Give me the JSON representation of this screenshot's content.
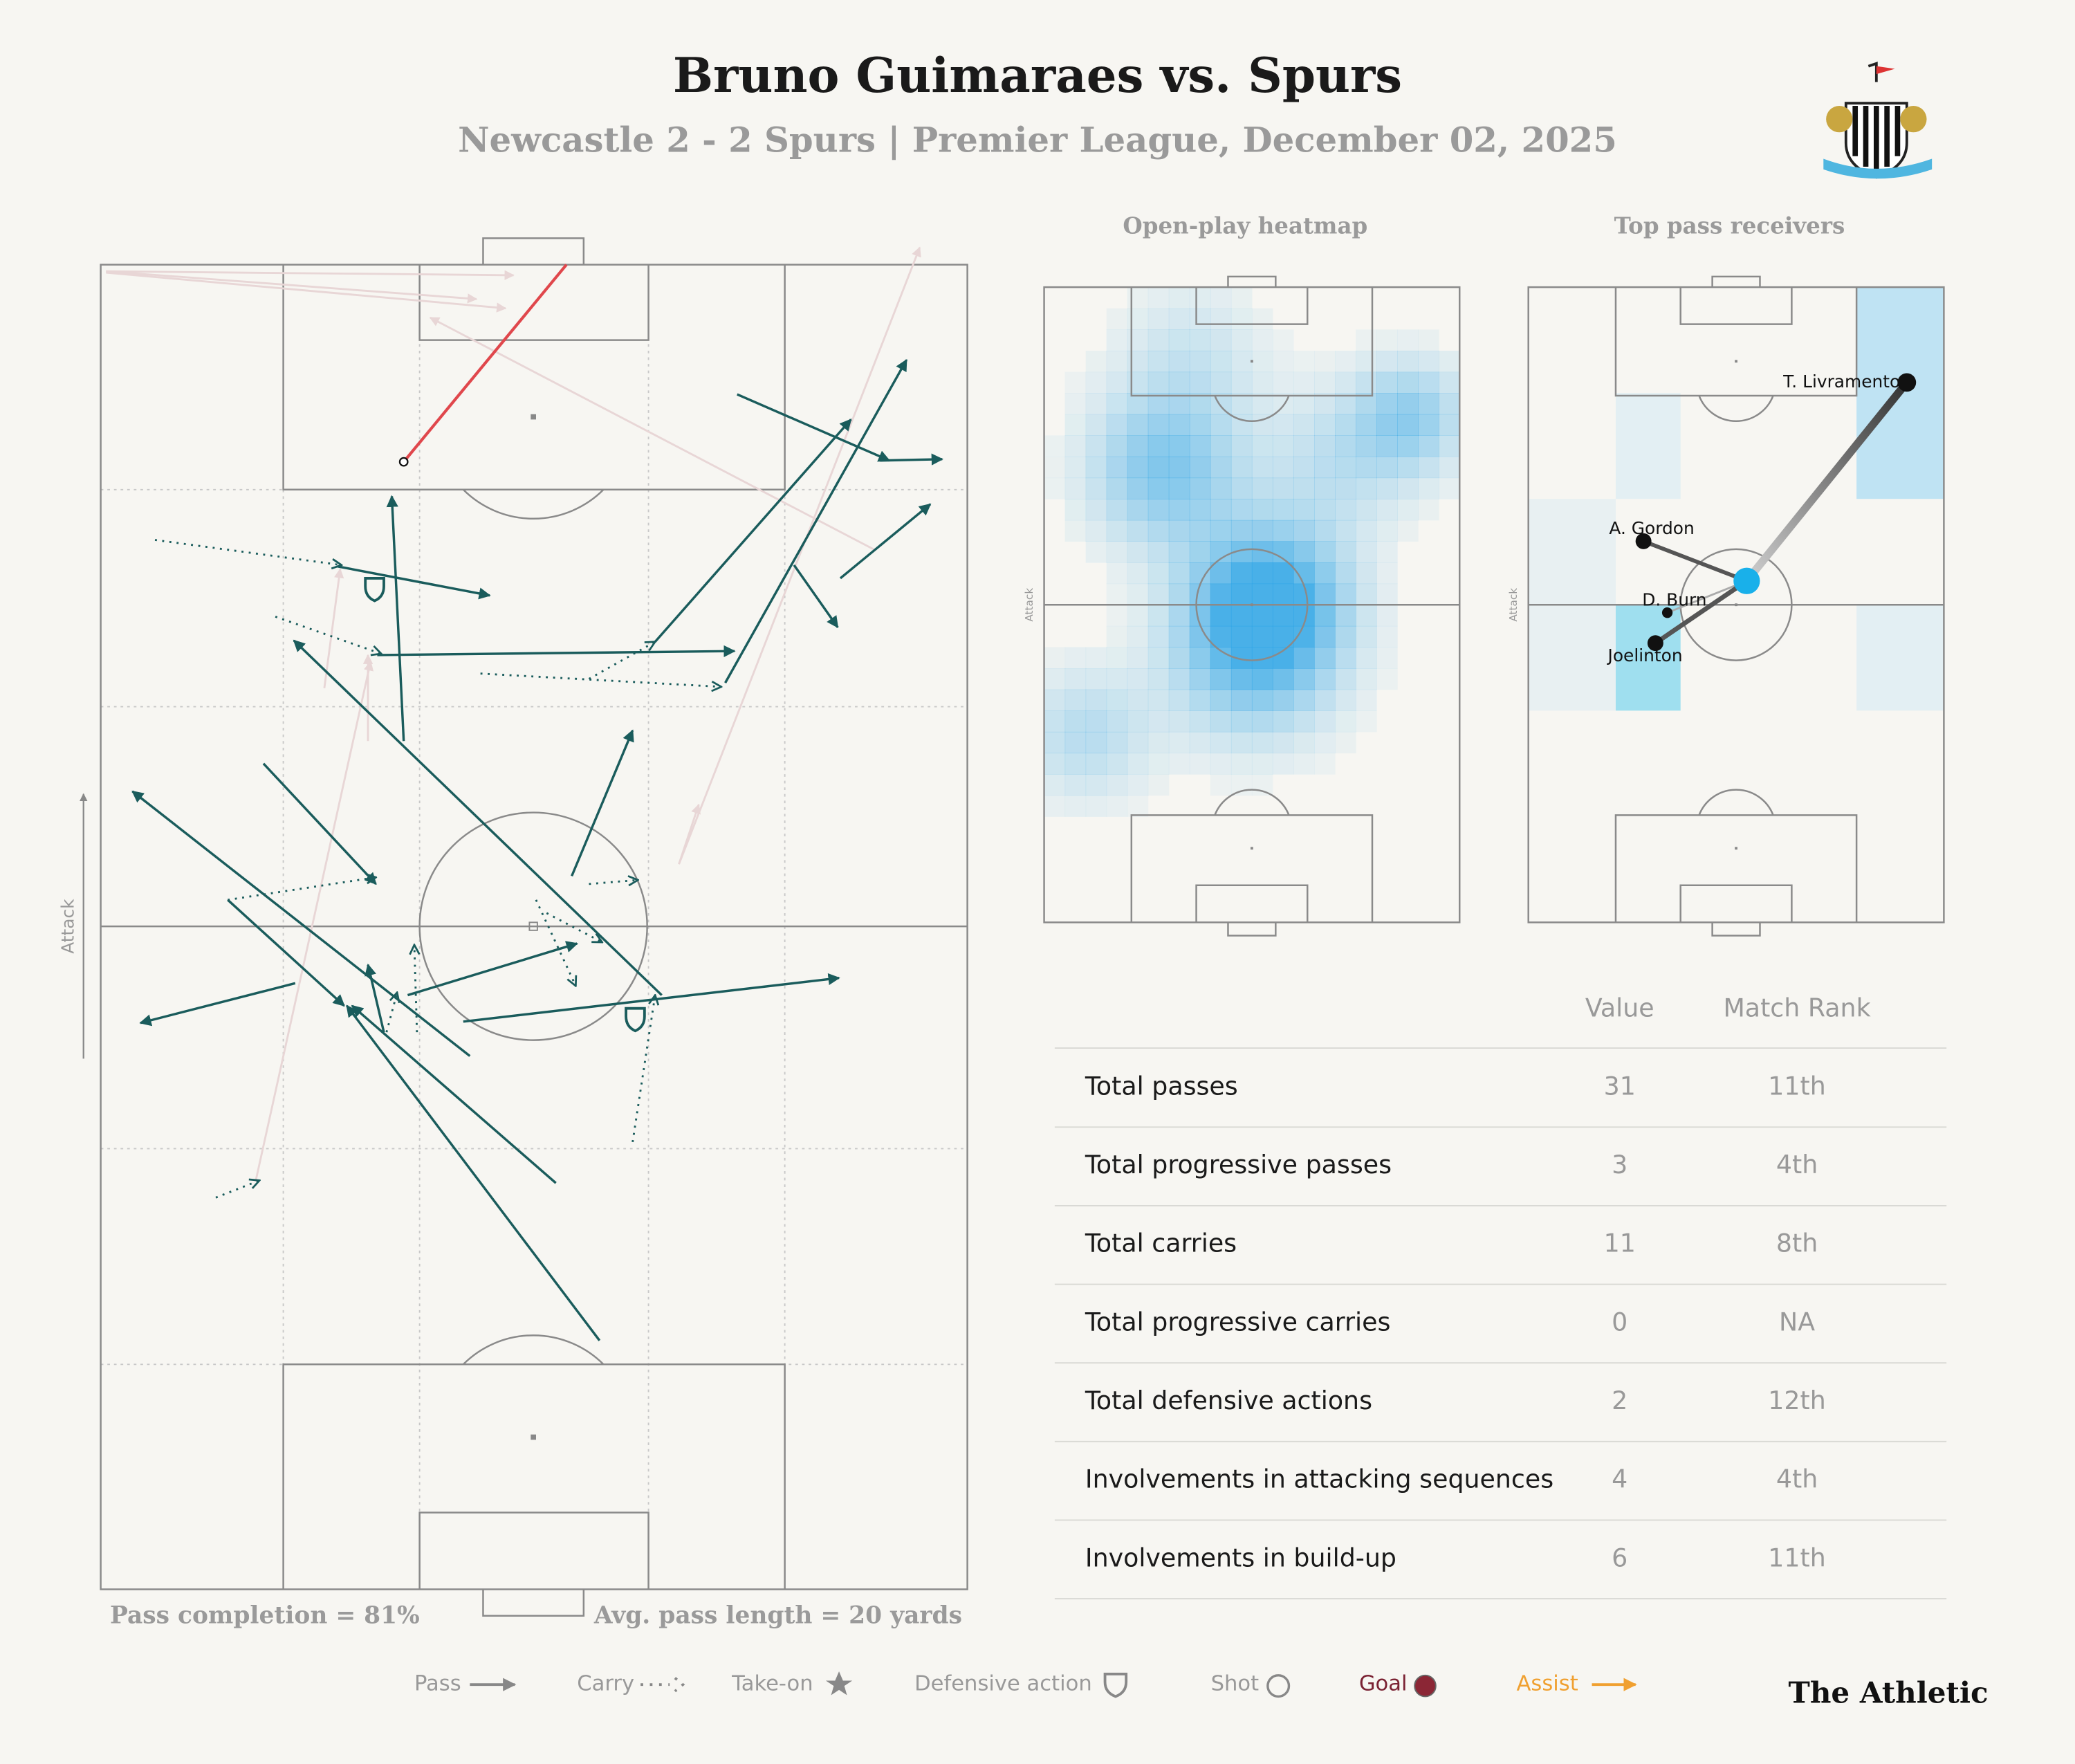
{
  "header": {
    "title": "Bruno Guimaraes vs. Spurs",
    "subtitle": "Newcastle 2 - 2 Spurs | Premier League, December 02, 2025"
  },
  "pitch": {
    "attack_label": "Attack",
    "pass_completion": "Pass completion = 81%",
    "avg_pass_length": "Avg. pass length = 20 yards"
  },
  "heatmap": {
    "title": "Open-play heatmap",
    "attack_label": "Attack"
  },
  "receivers": {
    "title": "Top pass receivers",
    "attack_label": "Attack",
    "players": [
      "T. Livramento",
      "A. Gordon",
      "D. Burn",
      "Joelinton"
    ]
  },
  "table": {
    "columns": [
      "Value",
      "Match Rank"
    ],
    "rows": [
      [
        "Total passes",
        31,
        "11th"
      ],
      [
        "Total progressive passes",
        3,
        "4th"
      ],
      [
        "Total carries",
        11,
        "8th"
      ],
      [
        "Total progressive carries",
        0,
        "NA"
      ],
      [
        "Total defensive actions",
        2,
        "12th"
      ],
      [
        "Involvements in attacking sequences",
        4,
        "4th"
      ],
      [
        "Involvements in build-up",
        6,
        "11th"
      ]
    ]
  },
  "legend": [
    "Pass",
    "Carry",
    "Take-on",
    "Defensive action",
    "Shot",
    "Goal",
    "Assist"
  ],
  "brand": "The Athletic"
}
